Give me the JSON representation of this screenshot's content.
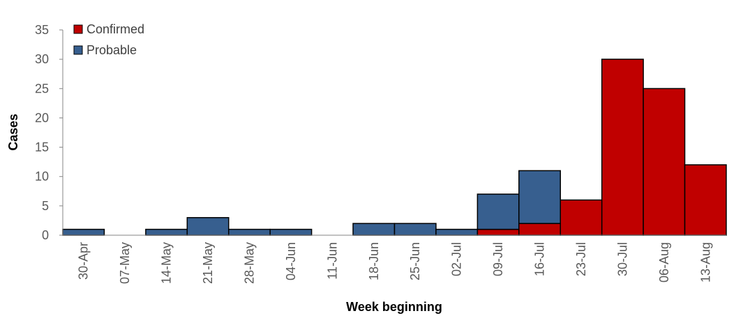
{
  "chart_data": {
    "type": "bar",
    "stacked": true,
    "categories": [
      "30-Apr",
      "07-May",
      "14-May",
      "21-May",
      "28-May",
      "04-Jun",
      "11-Jun",
      "18-Jun",
      "25-Jun",
      "02-Jul",
      "09-Jul",
      "16-Jul",
      "23-Jul",
      "30-Jul",
      "06-Aug",
      "13-Aug"
    ],
    "series": [
      {
        "name": "Confirmed",
        "color": "#c00000",
        "values": [
          0,
          0,
          0,
          0,
          0,
          0,
          0,
          0,
          0,
          0,
          1,
          2,
          6,
          30,
          25,
          12
        ]
      },
      {
        "name": "Probable",
        "color": "#375f8f",
        "values": [
          1,
          0,
          1,
          3,
          1,
          1,
          0,
          2,
          2,
          1,
          6,
          9,
          0,
          0,
          0,
          0
        ]
      }
    ],
    "title": "",
    "xlabel": "Week beginning",
    "ylabel": "Cases",
    "ylim": [
      0,
      35
    ],
    "yticks": [
      "0",
      "5",
      "10",
      "15",
      "20",
      "25",
      "30",
      "35"
    ],
    "grid": false,
    "legend": "top-left"
  }
}
